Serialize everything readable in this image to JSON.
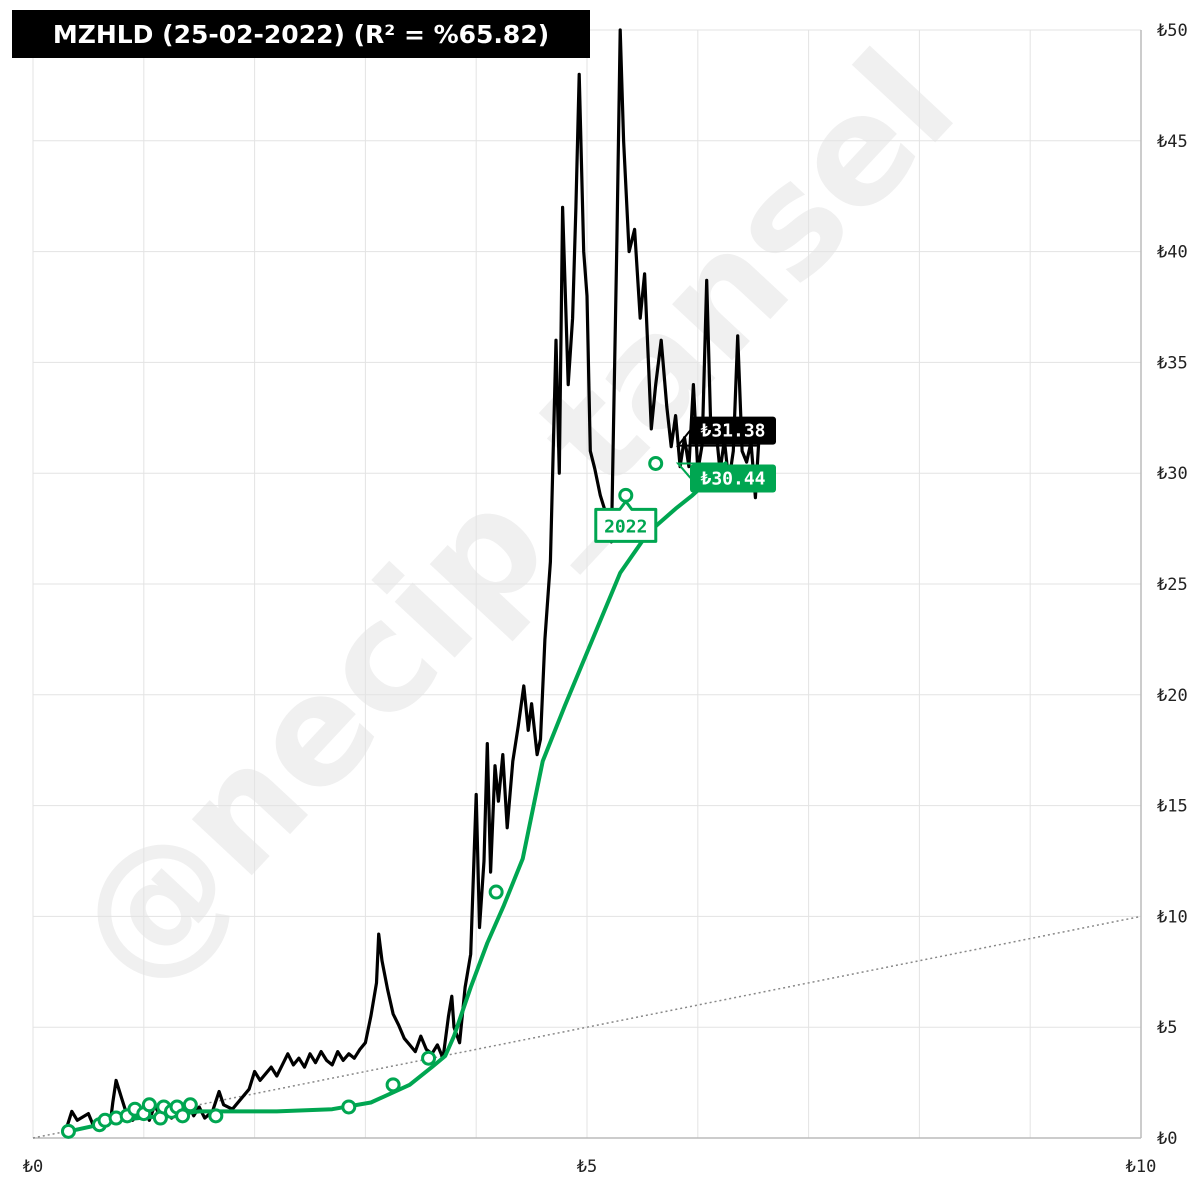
{
  "title": "MZHLD (25-02-2022) (R² = %65.82)",
  "watermark": "@necip_tansel",
  "colors": {
    "price": "#000000",
    "fit": "#00a651",
    "grid": "#e3e3e3",
    "diagonal": "#888888"
  },
  "chart_data": {
    "type": "line",
    "xlim": [
      0,
      10
    ],
    "ylim": [
      0,
      50
    ],
    "x_ticks": [
      "₺0",
      "₺5",
      "₺10"
    ],
    "y_ticks": [
      "₺0",
      "₺5",
      "₺10",
      "₺15",
      "₺20",
      "₺25",
      "₺30",
      "₺35",
      "₺40",
      "₺45",
      "₺50"
    ],
    "grid": true,
    "reference_line": {
      "style": "dotted",
      "points": [
        [
          0,
          0
        ],
        [
          10,
          10
        ]
      ]
    },
    "series": [
      {
        "color": "#000000",
        "points": [
          [
            0.3,
            0.4
          ],
          [
            0.35,
            1.2
          ],
          [
            0.4,
            0.8
          ],
          [
            0.5,
            1.1
          ],
          [
            0.55,
            0.5
          ],
          [
            0.6,
            0.9
          ],
          [
            0.7,
            0.8
          ],
          [
            0.72,
            1.6
          ],
          [
            0.75,
            2.6
          ],
          [
            0.8,
            1.8
          ],
          [
            0.85,
            1.0
          ],
          [
            0.9,
            0.8
          ],
          [
            1.0,
            1.3
          ],
          [
            1.05,
            0.8
          ],
          [
            1.1,
            1.5
          ],
          [
            1.15,
            0.9
          ],
          [
            1.2,
            1.4
          ],
          [
            1.25,
            0.9
          ],
          [
            1.3,
            1.1
          ],
          [
            1.35,
            0.8
          ],
          [
            1.4,
            1.5
          ],
          [
            1.45,
            1.0
          ],
          [
            1.5,
            1.4
          ],
          [
            1.55,
            0.9
          ],
          [
            1.62,
            1.2
          ],
          [
            1.68,
            2.1
          ],
          [
            1.72,
            1.5
          ],
          [
            1.8,
            1.3
          ],
          [
            1.95,
            2.2
          ],
          [
            2.0,
            3.0
          ],
          [
            2.05,
            2.6
          ],
          [
            2.1,
            2.9
          ],
          [
            2.15,
            3.2
          ],
          [
            2.2,
            2.8
          ],
          [
            2.25,
            3.3
          ],
          [
            2.3,
            3.8
          ],
          [
            2.35,
            3.3
          ],
          [
            2.4,
            3.6
          ],
          [
            2.45,
            3.2
          ],
          [
            2.5,
            3.8
          ],
          [
            2.55,
            3.4
          ],
          [
            2.6,
            3.9
          ],
          [
            2.65,
            3.5
          ],
          [
            2.7,
            3.3
          ],
          [
            2.75,
            3.9
          ],
          [
            2.8,
            3.5
          ],
          [
            2.85,
            3.8
          ],
          [
            2.9,
            3.6
          ],
          [
            2.95,
            4.0
          ],
          [
            3.0,
            4.3
          ],
          [
            3.05,
            5.5
          ],
          [
            3.1,
            7.0
          ],
          [
            3.12,
            9.2
          ],
          [
            3.15,
            8.0
          ],
          [
            3.2,
            6.7
          ],
          [
            3.25,
            5.6
          ],
          [
            3.3,
            5.1
          ],
          [
            3.35,
            4.5
          ],
          [
            3.4,
            4.2
          ],
          [
            3.45,
            3.9
          ],
          [
            3.5,
            4.6
          ],
          [
            3.55,
            4.0
          ],
          [
            3.6,
            3.8
          ],
          [
            3.65,
            4.2
          ],
          [
            3.7,
            3.6
          ],
          [
            3.75,
            5.5
          ],
          [
            3.78,
            6.4
          ],
          [
            3.8,
            5.0
          ],
          [
            3.85,
            4.3
          ],
          [
            3.9,
            6.8
          ],
          [
            3.95,
            8.3
          ],
          [
            4.0,
            15.5
          ],
          [
            4.03,
            9.5
          ],
          [
            4.07,
            12.5
          ],
          [
            4.1,
            17.8
          ],
          [
            4.13,
            12.0
          ],
          [
            4.17,
            16.8
          ],
          [
            4.2,
            15.2
          ],
          [
            4.24,
            17.3
          ],
          [
            4.28,
            14.0
          ],
          [
            4.33,
            17.0
          ],
          [
            4.38,
            18.6
          ],
          [
            4.43,
            20.4
          ],
          [
            4.47,
            18.4
          ],
          [
            4.5,
            19.6
          ],
          [
            4.55,
            17.3
          ],
          [
            4.58,
            18.0
          ],
          [
            4.62,
            22.5
          ],
          [
            4.67,
            26.0
          ],
          [
            4.72,
            36.0
          ],
          [
            4.75,
            30.0
          ],
          [
            4.78,
            42.0
          ],
          [
            4.83,
            34.0
          ],
          [
            4.87,
            37.0
          ],
          [
            4.9,
            42.0
          ],
          [
            4.93,
            48.0
          ],
          [
            4.97,
            40.0
          ],
          [
            5.0,
            38.0
          ],
          [
            5.03,
            31.0
          ],
          [
            5.07,
            30.2
          ],
          [
            5.12,
            29.0
          ],
          [
            5.17,
            28.2
          ],
          [
            5.22,
            26.9
          ],
          [
            5.27,
            40.5
          ],
          [
            5.3,
            50.0
          ],
          [
            5.33,
            45.0
          ],
          [
            5.38,
            40.0
          ],
          [
            5.43,
            41.0
          ],
          [
            5.48,
            37.0
          ],
          [
            5.52,
            39.0
          ],
          [
            5.58,
            32.0
          ],
          [
            5.62,
            34.0
          ],
          [
            5.67,
            36.0
          ],
          [
            5.72,
            33.0
          ],
          [
            5.76,
            31.2
          ],
          [
            5.8,
            32.6
          ],
          [
            5.84,
            30.3
          ],
          [
            5.88,
            31.6
          ],
          [
            5.92,
            30.3
          ],
          [
            5.96,
            34.0
          ],
          [
            6.0,
            30.1
          ],
          [
            6.04,
            31.3
          ],
          [
            6.08,
            38.7
          ],
          [
            6.12,
            31.5
          ],
          [
            6.16,
            32.2
          ],
          [
            6.2,
            30.1
          ],
          [
            6.24,
            31.5
          ],
          [
            6.28,
            29.6
          ],
          [
            6.32,
            31.0
          ],
          [
            6.36,
            36.2
          ],
          [
            6.4,
            31.0
          ],
          [
            6.44,
            30.5
          ],
          [
            6.48,
            31.4
          ],
          [
            6.52,
            28.9
          ],
          [
            6.55,
            31.4
          ]
        ]
      },
      {
        "color": "#00a651",
        "points": [
          [
            0.32,
            0.3
          ],
          [
            0.6,
            0.6
          ],
          [
            0.75,
            0.8
          ],
          [
            0.95,
            0.9
          ],
          [
            1.2,
            1.0
          ],
          [
            1.5,
            1.2
          ],
          [
            2.2,
            1.2
          ],
          [
            2.7,
            1.3
          ],
          [
            3.05,
            1.6
          ],
          [
            3.4,
            2.4
          ],
          [
            3.6,
            3.2
          ],
          [
            3.72,
            3.7
          ],
          [
            3.8,
            4.6
          ],
          [
            3.95,
            6.8
          ],
          [
            4.1,
            8.8
          ],
          [
            4.25,
            10.5
          ],
          [
            4.42,
            12.6
          ],
          [
            4.6,
            17.0
          ],
          [
            4.8,
            19.5
          ],
          [
            5.05,
            22.5
          ],
          [
            5.3,
            25.5
          ],
          [
            5.55,
            27.3
          ],
          [
            5.8,
            28.4
          ],
          [
            5.95,
            29.0
          ],
          [
            6.08,
            29.6
          ],
          [
            6.25,
            30.44
          ]
        ],
        "markers": [
          [
            0.32,
            0.3
          ],
          [
            0.6,
            0.6
          ],
          [
            0.65,
            0.8
          ],
          [
            0.75,
            0.9
          ],
          [
            0.85,
            1.0
          ],
          [
            0.92,
            1.3
          ],
          [
            1.0,
            1.1
          ],
          [
            1.05,
            1.5
          ],
          [
            1.15,
            0.9
          ],
          [
            1.18,
            1.4
          ],
          [
            1.25,
            1.2
          ],
          [
            1.3,
            1.4
          ],
          [
            1.35,
            1.0
          ],
          [
            1.42,
            1.5
          ],
          [
            1.65,
            1.0
          ],
          [
            2.85,
            1.4
          ],
          [
            3.25,
            2.4
          ],
          [
            3.57,
            3.6
          ],
          [
            4.18,
            11.1
          ],
          [
            5.35,
            29.0
          ],
          [
            5.62,
            30.44
          ]
        ]
      }
    ],
    "annotations": [
      {
        "text": "2022",
        "x": 5.35,
        "y": 29.0,
        "color": "#00a651"
      },
      {
        "text": "₺31.38",
        "color": "#000000",
        "value": 31.38
      },
      {
        "text": "₺30.44",
        "color": "#00a651",
        "value": 30.44
      }
    ]
  }
}
